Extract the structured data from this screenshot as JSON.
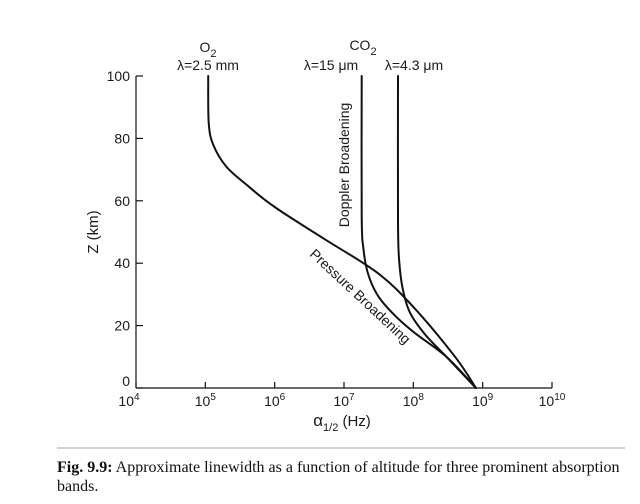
{
  "chart_data": {
    "type": "line",
    "xscale": "log",
    "xlim": [
      10000,
      10000000000
    ],
    "ylim": [
      0,
      100
    ],
    "xlabel": "α1/2 (Hz)",
    "xlabel_main": "α",
    "xlabel_sub": "1/2",
    "xlabel_unit": " (Hz)",
    "ylabel": "Z (km)",
    "xticks": [
      {
        "value": 10000,
        "base": "10",
        "exp": "4"
      },
      {
        "value": 100000,
        "base": "10",
        "exp": "5"
      },
      {
        "value": 1000000,
        "base": "10",
        "exp": "6"
      },
      {
        "value": 10000000,
        "base": "10",
        "exp": "7"
      },
      {
        "value": 100000000,
        "base": "10",
        "exp": "8"
      },
      {
        "value": 1000000000,
        "base": "10",
        "exp": "9"
      },
      {
        "value": 10000000000,
        "base": "10",
        "exp": "10"
      }
    ],
    "yticks": [
      {
        "value": 0,
        "label": "0"
      },
      {
        "value": 20,
        "label": "20"
      },
      {
        "value": 40,
        "label": "40"
      },
      {
        "value": 60,
        "label": "60"
      },
      {
        "value": 80,
        "label": "80"
      },
      {
        "value": 100,
        "label": "100"
      }
    ],
    "grid": false,
    "legend": "none",
    "series": [
      {
        "molecule_base": "O",
        "molecule_sub": "2",
        "wavelength": "λ=2.5 mm",
        "x": [
          800000000,
          400000000,
          100000000,
          30000000,
          5000000,
          1000000,
          400000,
          200000,
          130000,
          112000,
          110000
        ],
        "y": [
          0,
          10,
          26,
          37,
          48,
          58,
          65,
          71,
          78,
          85,
          100
        ]
      },
      {
        "molecule_base": "CO",
        "molecule_sub": "2",
        "wavelength": "λ=15 μm",
        "x": [
          800000000,
          300000000,
          100000000,
          50000000,
          30000000,
          22000000,
          19000000,
          18000000,
          18000000
        ],
        "y": [
          0,
          10,
          18,
          24,
          30,
          37,
          45,
          55,
          100
        ]
      },
      {
        "molecule_base": "",
        "molecule_sub": "",
        "wavelength": "λ=4.3 μm",
        "x": [
          800000000,
          300000000,
          150000000,
          90000000,
          70000000,
          62000000,
          60000000,
          60000000
        ],
        "y": [
          0,
          10,
          17,
          24,
          32,
          42,
          55,
          100
        ]
      }
    ],
    "annotations": {
      "doppler": "Doppler Broadening",
      "pressure": "Pressure Broadening"
    }
  },
  "caption": {
    "label": "Fig. 9.9:",
    "text": " Approximate linewidth as a function of altitude for three prominent absorption bands."
  }
}
